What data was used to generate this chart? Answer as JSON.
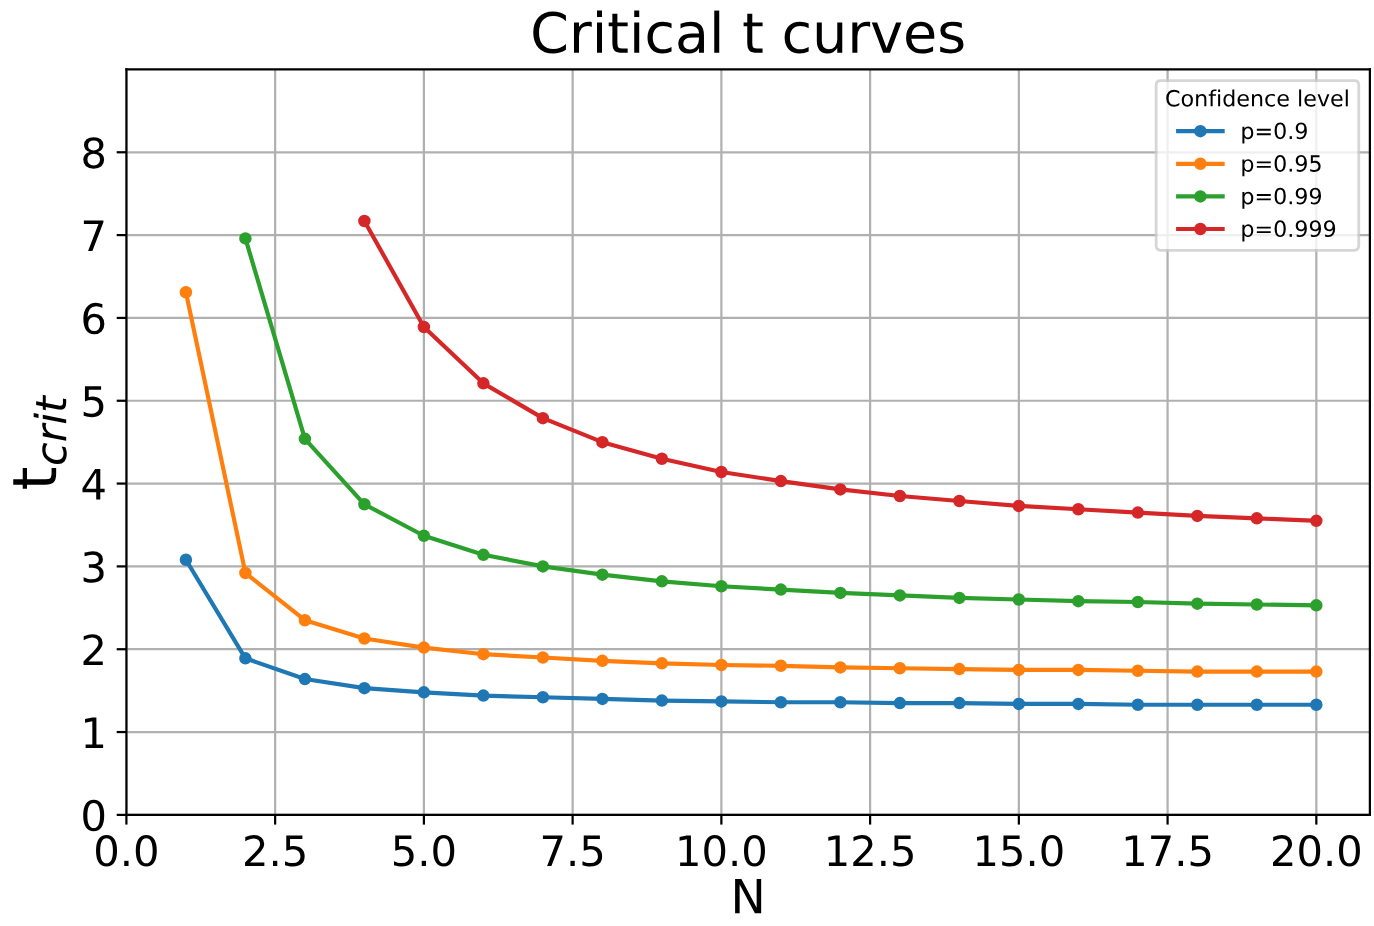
{
  "chart_data": {
    "type": "line",
    "title": "Critical t curves",
    "xlabel": "N",
    "ylabel": "t$_{crit}$",
    "legend_title": "Confidence level",
    "x": [
      1,
      2,
      3,
      4,
      5,
      6,
      7,
      8,
      9,
      10,
      11,
      12,
      13,
      14,
      15,
      16,
      17,
      18,
      19,
      20
    ],
    "series": [
      {
        "name": "p=0.9",
        "color": "#1f77b4",
        "values": [
          3.08,
          1.89,
          1.64,
          1.53,
          1.48,
          1.44,
          1.42,
          1.4,
          1.38,
          1.37,
          1.36,
          1.36,
          1.35,
          1.35,
          1.34,
          1.34,
          1.33,
          1.33,
          1.33,
          1.33
        ]
      },
      {
        "name": "p=0.95",
        "color": "#ff7f0e",
        "values": [
          6.31,
          2.92,
          2.35,
          2.13,
          2.02,
          1.94,
          1.9,
          1.86,
          1.83,
          1.81,
          1.8,
          1.78,
          1.77,
          1.76,
          1.75,
          1.75,
          1.74,
          1.73,
          1.73,
          1.73
        ]
      },
      {
        "name": "p=0.99",
        "color": "#2ca02c",
        "values": [
          null,
          6.96,
          4.54,
          3.75,
          3.37,
          3.14,
          3.0,
          2.9,
          2.82,
          2.76,
          2.72,
          2.68,
          2.65,
          2.62,
          2.6,
          2.58,
          2.57,
          2.55,
          2.54,
          2.53
        ]
      },
      {
        "name": "p=0.999",
        "color": "#d62728",
        "values": [
          null,
          null,
          null,
          7.17,
          5.89,
          5.21,
          4.79,
          4.5,
          4.3,
          4.14,
          4.03,
          3.93,
          3.85,
          3.79,
          3.73,
          3.69,
          3.65,
          3.61,
          3.58,
          3.55
        ]
      }
    ],
    "xlim": [
      0,
      20.9
    ],
    "xticks": [
      {
        "value": 0,
        "label": "0.0"
      },
      {
        "value": 2.5,
        "label": "2.5"
      },
      {
        "value": 5,
        "label": "5.0"
      },
      {
        "value": 7.5,
        "label": "7.5"
      },
      {
        "value": 10,
        "label": "10.0"
      },
      {
        "value": 12.5,
        "label": "12.5"
      },
      {
        "value": 15,
        "label": "15.0"
      },
      {
        "value": 17.5,
        "label": "17.5"
      },
      {
        "value": 20,
        "label": "20.0"
      }
    ],
    "ylim": [
      0,
      9
    ],
    "yticks": [
      0,
      1,
      2,
      3,
      4,
      5,
      6,
      7,
      8
    ],
    "grid": true,
    "legend": "top right",
    "marker": "circle",
    "line_style": "solid"
  }
}
